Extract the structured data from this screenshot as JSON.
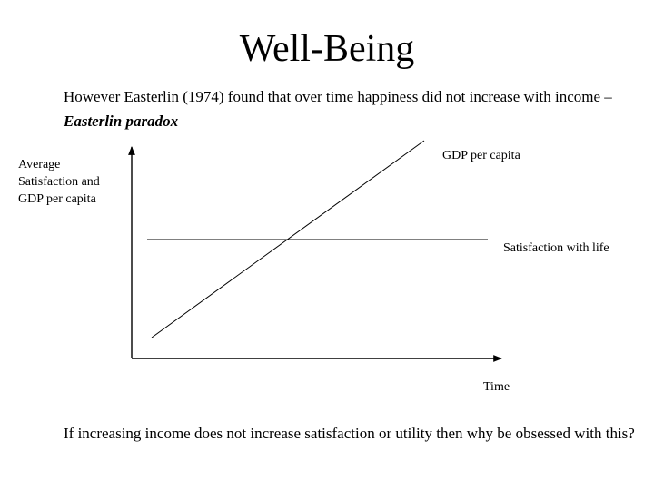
{
  "title": "Well-Being",
  "intro": {
    "text": "However Easterlin (1974) found that over time happiness did not increase with income – ",
    "emphasis": "Easterlin paradox"
  },
  "diagram": {
    "y_axis_label": "Average Satisfaction and GDP per capita",
    "x_axis_label": "Time",
    "series": [
      {
        "name": "GDP per capita",
        "trend": "rising"
      },
      {
        "name": "Satisfaction with life",
        "trend": "flat"
      }
    ],
    "line_color": "#000000"
  },
  "closing": "If increasing income does not increase satisfaction or utility then why be obsessed with this?"
}
